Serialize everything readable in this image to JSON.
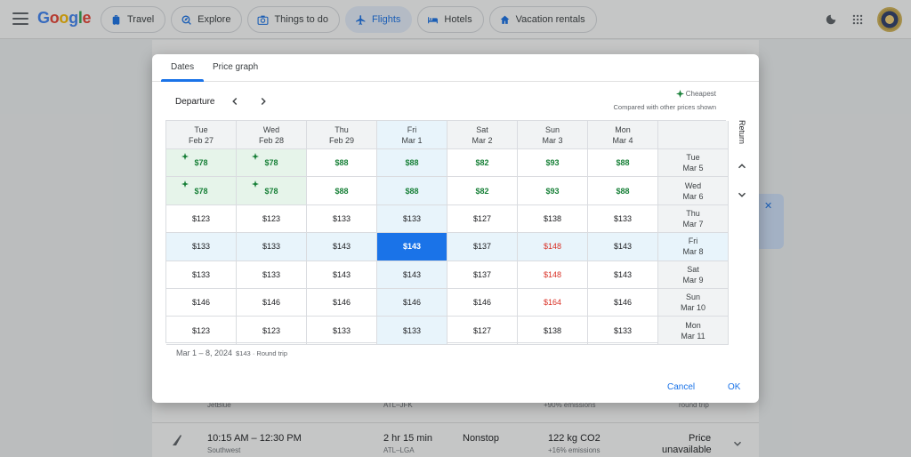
{
  "header": {
    "logo": "Google",
    "tabs": [
      {
        "label": "Travel",
        "icon": "luggage-icon"
      },
      {
        "label": "Explore",
        "icon": "explore-icon"
      },
      {
        "label": "Things to do",
        "icon": "camera-icon"
      },
      {
        "label": "Flights",
        "icon": "flight-icon",
        "active": true
      },
      {
        "label": "Hotels",
        "icon": "bed-icon"
      },
      {
        "label": "Vacation rentals",
        "icon": "house-icon"
      }
    ]
  },
  "background": {
    "row1": {
      "airline": "JetBlue",
      "route": "ATL–JFK",
      "emissions": "+90% emissions",
      "price_note": "round trip"
    },
    "row2": {
      "times": "10:15 AM – 12:30 PM",
      "airline": "Southwest",
      "duration": "2 hr 15 min",
      "route": "ATL–LGA",
      "stops": "Nonstop",
      "co2": "122 kg CO2",
      "emissions": "+16% emissions",
      "price_line1": "Price",
      "price_line2": "unavailable"
    }
  },
  "dialog": {
    "tabs": [
      "Dates",
      "Price graph"
    ],
    "departure_label": "Departure",
    "legend_cheapest": "Cheapest",
    "legend_compared": "Compared with other prices shown",
    "return_label": "Return",
    "columns": [
      {
        "day": "Tue",
        "date": "Feb 27"
      },
      {
        "day": "Wed",
        "date": "Feb 28"
      },
      {
        "day": "Thu",
        "date": "Feb 29"
      },
      {
        "day": "Fri",
        "date": "Mar 1"
      },
      {
        "day": "Sat",
        "date": "Mar 2"
      },
      {
        "day": "Sun",
        "date": "Mar 3"
      },
      {
        "day": "Mon",
        "date": "Mar 4"
      }
    ],
    "rows": [
      {
        "day": "Tue",
        "date": "Mar 5",
        "prices": [
          "$78",
          "$78",
          "$88",
          "$88",
          "$82",
          "$93",
          "$88"
        ]
      },
      {
        "day": "Wed",
        "date": "Mar 6",
        "prices": [
          "$78",
          "$78",
          "$88",
          "$88",
          "$82",
          "$93",
          "$88"
        ]
      },
      {
        "day": "Thu",
        "date": "Mar 7",
        "prices": [
          "$123",
          "$123",
          "$133",
          "$133",
          "$127",
          "$138",
          "$133"
        ]
      },
      {
        "day": "Fri",
        "date": "Mar 8",
        "prices": [
          "$133",
          "$133",
          "$143",
          "$143",
          "$137",
          "$148",
          "$143"
        ]
      },
      {
        "day": "Sat",
        "date": "Mar 9",
        "prices": [
          "$133",
          "$133",
          "$143",
          "$143",
          "$137",
          "$148",
          "$143"
        ]
      },
      {
        "day": "Sun",
        "date": "Mar 10",
        "prices": [
          "$146",
          "$146",
          "$146",
          "$146",
          "$146",
          "$164",
          "$146"
        ]
      },
      {
        "day": "Mon",
        "date": "Mar 11",
        "prices": [
          "$123",
          "$123",
          "$133",
          "$133",
          "$127",
          "$138",
          "$133"
        ]
      }
    ],
    "selected_col": 3,
    "selected_row": 3,
    "summary_dates": "Mar 1 – 8, 2024",
    "summary_price": "$143 · Round trip",
    "cancel_label": "Cancel",
    "ok_label": "OK"
  },
  "colors": {
    "accent": "#1a73e8",
    "cheap": "#188038",
    "expensive": "#d93025"
  }
}
